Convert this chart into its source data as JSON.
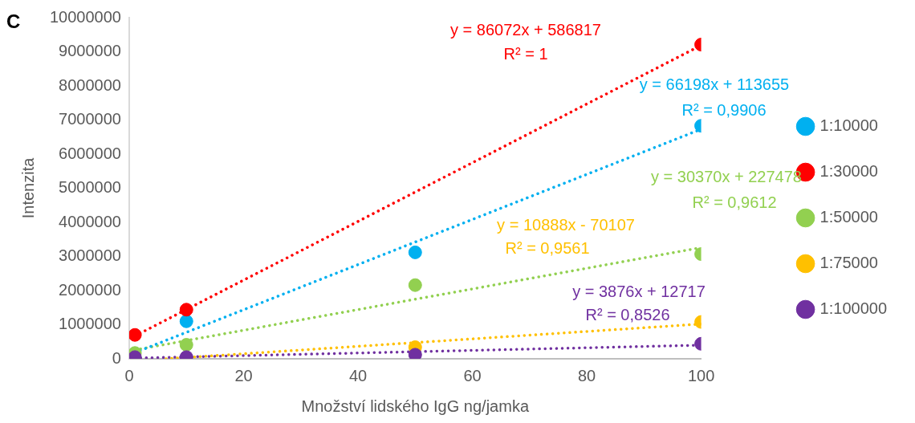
{
  "chart_data": {
    "type": "scatter",
    "title": "C",
    "xlabel": "Množství lidského IgG ng/jamka",
    "ylabel": "Intenzita",
    "x": [
      1,
      10,
      50,
      100
    ],
    "series": [
      {
        "name": "1:10000",
        "color": "#00b0f0",
        "values": [
          null,
          1100000,
          3120000,
          6830000
        ]
      },
      {
        "name": "1:30000",
        "color": "#ff0000",
        "values": [
          700000,
          1440000,
          null,
          9210000
        ]
      },
      {
        "name": "1:50000",
        "color": "#92d050",
        "values": [
          170000,
          410000,
          2160000,
          3070000
        ]
      },
      {
        "name": "1:75000",
        "color": "#ffc000",
        "values": [
          null,
          null,
          340000,
          1080000
        ]
      },
      {
        "name": "1:100000",
        "color": "#7030a0",
        "values": [
          50000,
          50000,
          120000,
          440000
        ]
      },
      {
        "type": "line",
        "color": "#ff0000",
        "x": [
          1,
          100
        ],
        "values": [
          670000,
          9190000
        ],
        "line_style": "dotted",
        "marker": "none"
      },
      {
        "type": "line",
        "color": "#00b0f0",
        "x": [
          1,
          100
        ],
        "values": [
          180000,
          6730000
        ],
        "line_style": "dotted",
        "marker": "none"
      },
      {
        "type": "line",
        "color": "#92d050",
        "x": [
          1,
          100
        ],
        "values": [
          260000,
          3260000
        ],
        "line_style": "dotted",
        "marker": "none"
      },
      {
        "type": "line",
        "color": "#ffc000",
        "x": [
          6.44,
          100
        ],
        "values": [
          0,
          1020000
        ],
        "line_style": "dotted",
        "marker": "none"
      },
      {
        "type": "line",
        "color": "#7030a0",
        "x": [
          1,
          100
        ],
        "values": [
          20000,
          400000
        ],
        "line_style": "dotted",
        "marker": "none"
      }
    ],
    "annotations": [
      "y = 86072x + 586817",
      "R² = 1",
      "y = 66198x + 113655",
      "R² = 0,9906",
      "y = 30370x + 227478",
      "R² = 0,9612",
      "y = 10888x - 70107",
      "R² = 0,9561",
      "y = 3876x + 12717",
      "R² = 0,8526"
    ],
    "xlim": [
      0,
      100
    ],
    "xticks": [
      0,
      20,
      40,
      60,
      80,
      100
    ],
    "ylim": [
      0,
      10000000
    ],
    "yticks": [
      0,
      1000000,
      2000000,
      3000000,
      4000000,
      5000000,
      6000000,
      7000000,
      8000000,
      9000000,
      10000000
    ],
    "grid": false,
    "legend": "right",
    "marker": "circle"
  }
}
